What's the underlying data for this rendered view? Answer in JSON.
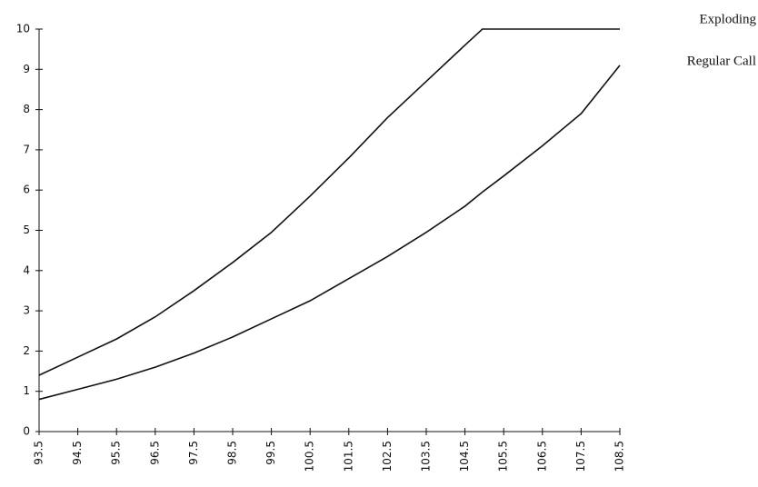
{
  "chart_data": {
    "type": "line",
    "x": [
      93.5,
      94.5,
      95.5,
      96.5,
      97.5,
      98.5,
      99.5,
      100.5,
      101.5,
      102.5,
      103.5,
      104.5,
      104.95,
      105.5,
      106.5,
      107.5,
      108.5
    ],
    "series": [
      {
        "name": "Exploding",
        "color": "#111111",
        "values": [
          1.4,
          1.85,
          2.3,
          2.85,
          3.5,
          4.2,
          4.95,
          5.85,
          6.8,
          7.8,
          8.7,
          9.6,
          10,
          10,
          10,
          10,
          10
        ]
      },
      {
        "name": "Regular Call",
        "color": "#111111",
        "values": [
          0.8,
          1.05,
          1.3,
          1.6,
          1.95,
          2.35,
          2.8,
          3.25,
          3.8,
          4.35,
          4.95,
          5.6,
          5.95,
          6.35,
          7.1,
          7.9,
          9.1
        ]
      }
    ],
    "xlim": [
      93.5,
      108.5
    ],
    "xticks": [
      93.5,
      94.5,
      95.5,
      96.5,
      97.5,
      98.5,
      99.5,
      100.5,
      101.5,
      102.5,
      103.5,
      104.5,
      105.5,
      106.5,
      107.5,
      108.5
    ],
    "ylim": [
      0,
      10
    ],
    "yticks": [
      0,
      1,
      2,
      3,
      4,
      5,
      6,
      7,
      8,
      9,
      10
    ],
    "grid": false,
    "legend": "line-end"
  }
}
